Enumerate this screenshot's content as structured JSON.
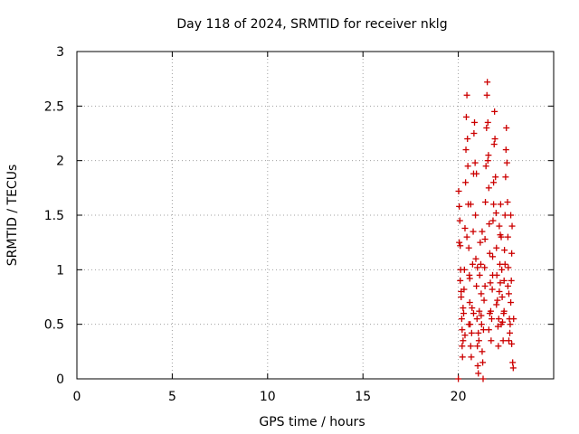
{
  "chart_data": {
    "type": "scatter",
    "title": "Day 118 of 2024, SRMTID for receiver nklg",
    "xlabel": "GPS time / hours",
    "ylabel": "SRMTID / TECUs",
    "xlim": [
      0,
      25
    ],
    "ylim": [
      0,
      3
    ],
    "xticks": [
      0,
      5,
      10,
      15,
      20
    ],
    "yticks": [
      0,
      0.5,
      1,
      1.5,
      2,
      2.5,
      3
    ],
    "xtick_labels": [
      "0",
      "5",
      "10",
      "15",
      "20"
    ],
    "ytick_labels": [
      "0",
      "0.5",
      "1",
      "1.5",
      "2",
      "2.5",
      "3"
    ],
    "grid": true,
    "marker": "+",
    "color": "#cc0000",
    "series": [
      {
        "name": "SRMTID",
        "points": [
          [
            20.0,
            0.0
          ],
          [
            20.02,
            1.72
          ],
          [
            20.05,
            1.58
          ],
          [
            20.05,
            1.25
          ],
          [
            20.08,
            1.45
          ],
          [
            20.1,
            1.22
          ],
          [
            20.12,
            1.0
          ],
          [
            20.15,
            0.8
          ],
          [
            20.15,
            0.75
          ],
          [
            20.18,
            0.55
          ],
          [
            20.2,
            0.45
          ],
          [
            20.2,
            0.3
          ],
          [
            20.22,
            0.2
          ],
          [
            20.25,
            0.35
          ],
          [
            20.28,
            0.6
          ],
          [
            20.3,
            0.82
          ],
          [
            20.32,
            1.0
          ],
          [
            20.35,
            1.38
          ],
          [
            20.38,
            1.8
          ],
          [
            20.4,
            2.1
          ],
          [
            20.42,
            2.4
          ],
          [
            20.45,
            2.6
          ],
          [
            20.48,
            2.2
          ],
          [
            20.5,
            1.95
          ],
          [
            20.52,
            1.6
          ],
          [
            20.55,
            1.2
          ],
          [
            20.58,
            0.95
          ],
          [
            20.6,
            0.7
          ],
          [
            20.62,
            0.5
          ],
          [
            20.65,
            0.3
          ],
          [
            20.68,
            0.2
          ],
          [
            20.7,
            0.42
          ],
          [
            20.72,
            0.65
          ],
          [
            20.75,
            1.05
          ],
          [
            20.78,
            1.35
          ],
          [
            20.8,
            1.88
          ],
          [
            20.82,
            2.25
          ],
          [
            20.85,
            2.35
          ],
          [
            20.88,
            1.98
          ],
          [
            20.9,
            1.5
          ],
          [
            20.92,
            1.1
          ],
          [
            20.95,
            0.85
          ],
          [
            20.98,
            0.55
          ],
          [
            21.0,
            0.3
          ],
          [
            21.02,
            0.12
          ],
          [
            21.05,
            0.05
          ],
          [
            21.08,
            0.35
          ],
          [
            21.1,
            0.62
          ],
          [
            21.12,
            0.95
          ],
          [
            21.15,
            1.25
          ],
          [
            21.18,
            1.05
          ],
          [
            21.2,
            0.78
          ],
          [
            21.22,
            0.5
          ],
          [
            21.25,
            0.25
          ],
          [
            21.28,
            0.15
          ],
          [
            21.3,
            0.0
          ],
          [
            21.32,
            0.45
          ],
          [
            21.35,
            0.72
          ],
          [
            21.38,
            1.02
          ],
          [
            21.4,
            1.28
          ],
          [
            21.42,
            1.62
          ],
          [
            21.45,
            1.95
          ],
          [
            21.48,
            2.3
          ],
          [
            21.5,
            2.6
          ],
          [
            21.52,
            2.72
          ],
          [
            21.55,
            2.35
          ],
          [
            21.58,
            2.05
          ],
          [
            21.6,
            1.75
          ],
          [
            21.62,
            1.42
          ],
          [
            21.65,
            1.15
          ],
          [
            21.68,
            0.88
          ],
          [
            21.7,
            0.62
          ],
          [
            21.72,
            0.35
          ],
          [
            21.75,
            0.55
          ],
          [
            21.78,
            0.82
          ],
          [
            21.8,
            1.12
          ],
          [
            21.82,
            1.45
          ],
          [
            21.85,
            1.8
          ],
          [
            21.88,
            2.15
          ],
          [
            21.9,
            2.45
          ],
          [
            21.92,
            2.2
          ],
          [
            21.95,
            1.85
          ],
          [
            21.98,
            1.52
          ],
          [
            22.0,
            1.2
          ],
          [
            22.02,
            0.95
          ],
          [
            22.05,
            0.72
          ],
          [
            22.08,
            0.48
          ],
          [
            22.1,
            0.3
          ],
          [
            22.12,
            0.55
          ],
          [
            22.15,
            0.8
          ],
          [
            22.18,
            1.05
          ],
          [
            22.2,
            1.32
          ],
          [
            22.22,
            1.6
          ],
          [
            22.25,
            1.3
          ],
          [
            22.28,
            1.0
          ],
          [
            22.3,
            0.75
          ],
          [
            22.32,
            0.52
          ],
          [
            22.35,
            0.35
          ],
          [
            22.38,
            0.6
          ],
          [
            22.4,
            0.9
          ],
          [
            22.42,
            1.18
          ],
          [
            22.45,
            1.5
          ],
          [
            22.48,
            1.85
          ],
          [
            22.5,
            2.1
          ],
          [
            22.52,
            2.3
          ],
          [
            22.55,
            1.98
          ],
          [
            22.58,
            1.62
          ],
          [
            22.6,
            1.3
          ],
          [
            22.62,
            1.02
          ],
          [
            22.65,
            0.78
          ],
          [
            22.68,
            0.55
          ],
          [
            22.7,
            0.42
          ],
          [
            22.72,
            0.5
          ],
          [
            22.75,
            0.7
          ],
          [
            22.78,
            0.9
          ],
          [
            22.8,
            1.15
          ],
          [
            22.82,
            1.4
          ],
          [
            22.85,
            0.15
          ],
          [
            22.88,
            0.1
          ],
          [
            22.9,
            0.55
          ],
          [
            20.1,
            0.9
          ],
          [
            20.25,
            0.65
          ],
          [
            20.45,
            1.3
          ],
          [
            20.6,
            0.92
          ],
          [
            20.8,
            0.6
          ],
          [
            21.0,
            1.02
          ],
          [
            21.2,
            0.58
          ],
          [
            21.4,
            0.85
          ],
          [
            21.6,
            0.45
          ],
          [
            21.8,
            0.95
          ],
          [
            22.0,
            0.68
          ],
          [
            22.2,
            0.88
          ],
          [
            22.4,
            0.62
          ],
          [
            22.6,
            0.85
          ],
          [
            22.8,
            0.32
          ],
          [
            20.35,
            0.4
          ],
          [
            20.65,
            1.6
          ],
          [
            20.95,
            1.88
          ],
          [
            21.25,
            1.35
          ],
          [
            21.55,
            2.0
          ],
          [
            21.85,
            1.6
          ],
          [
            22.15,
            1.4
          ],
          [
            22.45,
            1.05
          ],
          [
            22.75,
            1.5
          ],
          [
            20.55,
            0.5
          ],
          [
            21.05,
            0.42
          ],
          [
            21.65,
            0.6
          ],
          [
            22.25,
            0.5
          ],
          [
            22.65,
            0.35
          ]
        ]
      }
    ]
  }
}
